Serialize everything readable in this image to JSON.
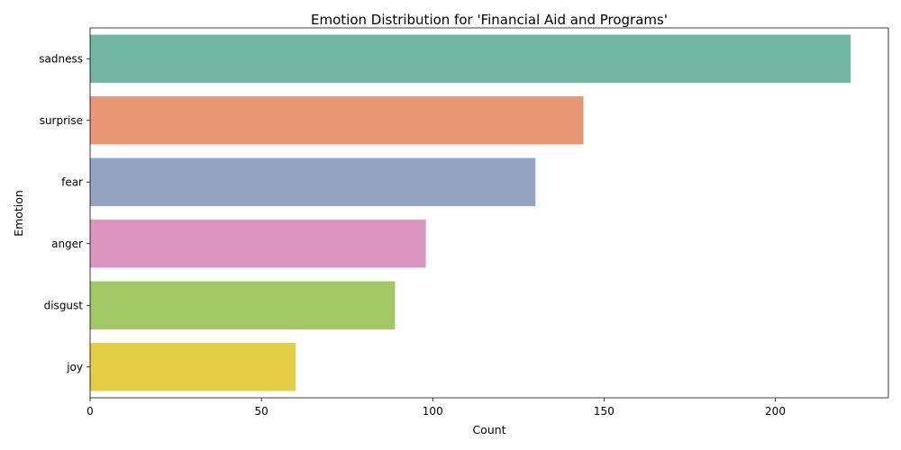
{
  "chart_data": {
    "type": "bar",
    "orientation": "horizontal",
    "title": "Emotion Distribution for 'Financial Aid and Programs'",
    "xlabel": "Count",
    "ylabel": "Emotion",
    "categories": [
      "sadness",
      "surprise",
      "fear",
      "anger",
      "disgust",
      "joy"
    ],
    "values": [
      222,
      144,
      130,
      98,
      89,
      60
    ],
    "colors": [
      "#72b6a1",
      "#e99675",
      "#95a3c3",
      "#db96c0",
      "#a2c865",
      "#e5cd46"
    ],
    "xlim": [
      0,
      233
    ],
    "xticks": [
      0,
      50,
      100,
      150,
      200
    ],
    "grid": false,
    "legend": "none"
  }
}
